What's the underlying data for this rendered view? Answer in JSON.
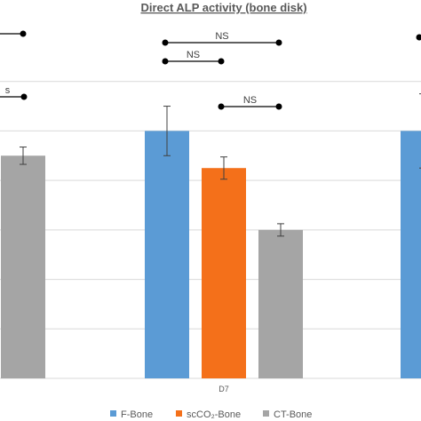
{
  "chart_data": {
    "type": "bar",
    "title": "Direct ALP activity (bone disk)",
    "categories": [
      "",
      "D7",
      ""
    ],
    "series": [
      {
        "name": "F-Bone",
        "color": "#5b9bd5",
        "values": [
          null,
          100,
          100
        ],
        "errors": [
          null,
          10,
          15
        ]
      },
      {
        "name": "scCO₂-Bone",
        "color": "#f4701a",
        "values": [
          null,
          85,
          null
        ],
        "errors": [
          null,
          4.5,
          null
        ]
      },
      {
        "name": "CT-Bone",
        "color": "#a5a5a5",
        "values": [
          90,
          60,
          null
        ],
        "errors": [
          3.5,
          2.5,
          null
        ]
      }
    ],
    "ylim": [
      0,
      140
    ],
    "gridlines": [
      0,
      20,
      40,
      60,
      80,
      100,
      120
    ],
    "grid": true,
    "legend_position": "bottom",
    "annotations": [
      {
        "label": "NS",
        "from": "F-Bone D7",
        "to": "CT-Bone D7"
      },
      {
        "label": "NS",
        "from": "F-Bone D7",
        "to": "scCO₂-Bone D7"
      },
      {
        "label": "NS",
        "from": "scCO₂-Bone D7",
        "to": "CT-Bone D7"
      },
      {
        "label": "s",
        "from": "left group",
        "to": "CT-Bone (left group)"
      }
    ]
  }
}
